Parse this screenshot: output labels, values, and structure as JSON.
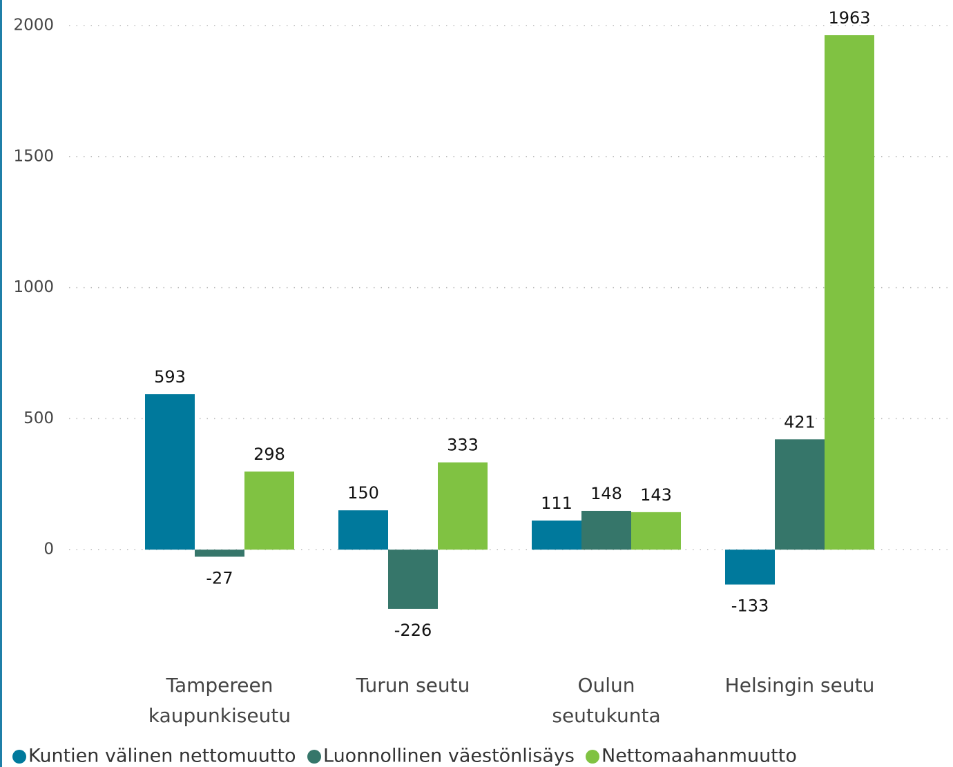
{
  "chart_data": {
    "type": "bar",
    "categories": [
      "Tampereen\nkaupunkiseutu",
      "Turun seutu",
      "Oulun\nseutukunta",
      "Helsingin seutu"
    ],
    "series": [
      {
        "name": "Kuntien välinen nettomuutto",
        "color": "#00799c",
        "values": [
          593,
          150,
          111,
          -133
        ]
      },
      {
        "name": "Luonnollinen väestönlisäys",
        "color": "#36766a",
        "values": [
          -27,
          -226,
          148,
          421
        ]
      },
      {
        "name": "Nettomaahanmuutto",
        "color": "#80c242",
        "values": [
          298,
          333,
          143,
          1963
        ]
      }
    ],
    "ylim": [
      -350,
      2050
    ],
    "yticks": [
      0,
      500,
      1000,
      1500,
      2000
    ],
    "grid": true,
    "legend": "bottom"
  }
}
